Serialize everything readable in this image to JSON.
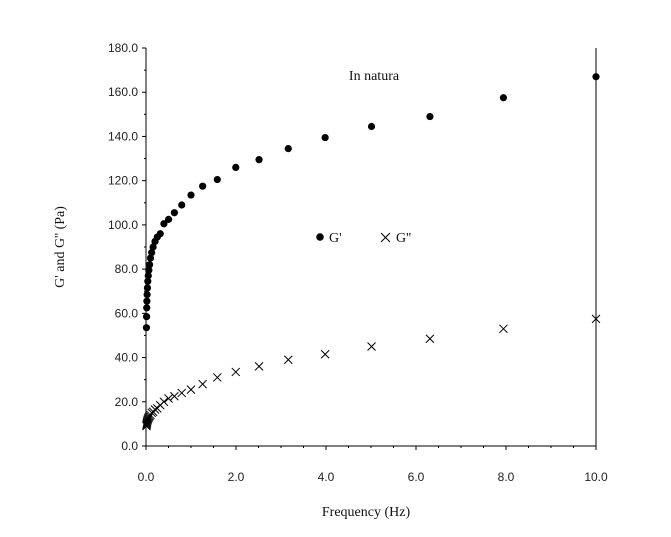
{
  "chart_data": {
    "type": "scatter",
    "title": "",
    "annotation": "In natura",
    "xlabel": "Frequency (Hz)",
    "ylabel": "G' and G'' (Pa)",
    "xlim": [
      0,
      10
    ],
    "ylim": [
      0,
      180
    ],
    "x_ticks": [
      "0.0",
      "2.0",
      "4.0",
      "6.0",
      "8.0",
      "10.0"
    ],
    "y_ticks": [
      "0.0",
      "20.0",
      "40.0",
      "60.0",
      "80.0",
      "100.0",
      "120.0",
      "140.0",
      "160.0",
      "180.0"
    ],
    "grid": false,
    "legend_position": "center-right",
    "series": [
      {
        "name": "G'",
        "marker": "filled-circle",
        "color": "#000000",
        "points": [
          [
            0.01,
            53.5
          ],
          [
            0.013,
            58.5
          ],
          [
            0.016,
            62.5
          ],
          [
            0.02,
            65.5
          ],
          [
            0.025,
            68.5
          ],
          [
            0.032,
            71.5
          ],
          [
            0.04,
            74.5
          ],
          [
            0.05,
            77.0
          ],
          [
            0.063,
            79.5
          ],
          [
            0.079,
            82.0
          ],
          [
            0.1,
            85.0
          ],
          [
            0.126,
            87.5
          ],
          [
            0.158,
            90.0
          ],
          [
            0.2,
            92.5
          ],
          [
            0.251,
            94.5
          ],
          [
            0.316,
            96.0
          ],
          [
            0.398,
            100.5
          ],
          [
            0.501,
            102.5
          ],
          [
            0.631,
            105.5
          ],
          [
            0.794,
            109.0
          ],
          [
            1.0,
            113.5
          ],
          [
            1.259,
            117.5
          ],
          [
            1.585,
            120.5
          ],
          [
            1.995,
            126.0
          ],
          [
            2.512,
            129.5
          ],
          [
            3.162,
            134.5
          ],
          [
            3.981,
            139.5
          ],
          [
            5.012,
            144.5
          ],
          [
            6.31,
            149.0
          ],
          [
            7.943,
            157.5
          ],
          [
            10.0,
            167.0
          ]
        ]
      },
      {
        "name": "G''",
        "marker": "x",
        "color": "#000000",
        "points": [
          [
            0.01,
            9.0
          ],
          [
            0.013,
            9.5
          ],
          [
            0.016,
            10.0
          ],
          [
            0.02,
            10.5
          ],
          [
            0.025,
            11.0
          ],
          [
            0.032,
            11.5
          ],
          [
            0.04,
            12.0
          ],
          [
            0.05,
            12.5
          ],
          [
            0.063,
            13.0
          ],
          [
            0.079,
            13.5
          ],
          [
            0.1,
            14.0
          ],
          [
            0.126,
            15.0
          ],
          [
            0.158,
            15.5
          ],
          [
            0.2,
            16.5
          ],
          [
            0.251,
            17.0
          ],
          [
            0.316,
            18.5
          ],
          [
            0.398,
            20.0
          ],
          [
            0.501,
            21.5
          ],
          [
            0.631,
            22.5
          ],
          [
            0.794,
            24.0
          ],
          [
            1.0,
            25.5
          ],
          [
            1.259,
            28.0
          ],
          [
            1.585,
            31.0
          ],
          [
            1.995,
            33.5
          ],
          [
            2.512,
            36.0
          ],
          [
            3.162,
            39.0
          ],
          [
            3.981,
            41.5
          ],
          [
            5.012,
            45.0
          ],
          [
            6.31,
            48.5
          ],
          [
            7.943,
            53.0
          ],
          [
            10.0,
            57.5
          ]
        ]
      }
    ]
  }
}
